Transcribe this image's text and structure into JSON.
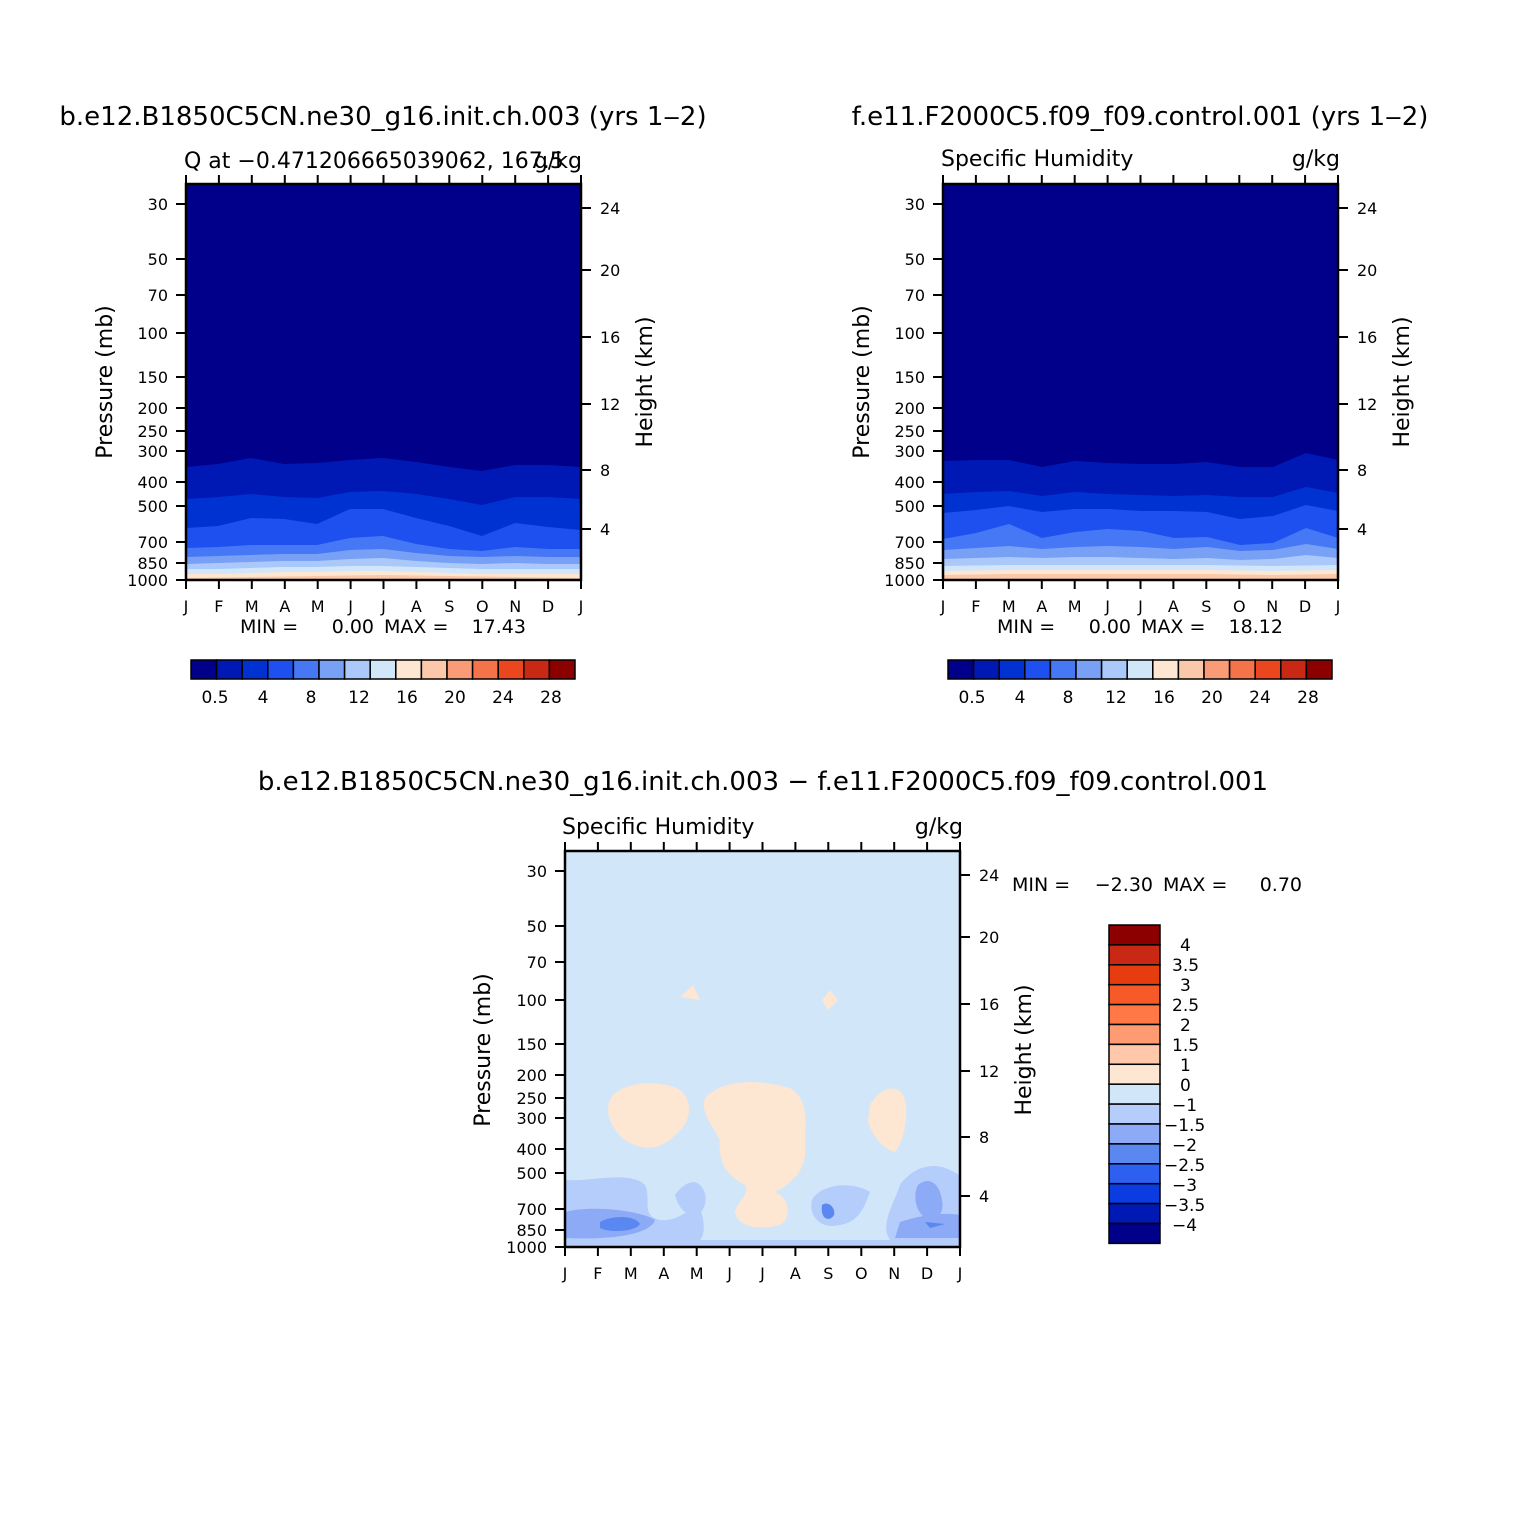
{
  "chart_data": [
    {
      "type": "contour",
      "case_title": "b.e12.B1850C5CN.ne30_g16.init.ch.003 (yrs 1‒2)",
      "left_title": "Q at −0.471206665039062, 167.5",
      "right_title": "g/kg",
      "ylabel": "Pressure (mb)",
      "ylabel_right": "Height (km)",
      "x_ticks": [
        "J",
        "F",
        "M",
        "A",
        "M",
        "J",
        "J",
        "A",
        "S",
        "O",
        "N",
        "D",
        "J"
      ],
      "y_ticks": [
        "30",
        "50",
        "70",
        "100",
        "150",
        "200",
        "250",
        "300",
        "400",
        "500",
        "700",
        "850",
        "1000"
      ],
      "y_ticks_right": [
        "24",
        "20",
        "16",
        "12",
        "8",
        "4"
      ],
      "stats": {
        "min_label": "MIN =",
        "min": "0.00",
        "max_label": "MAX =",
        "max": "17.43"
      },
      "colorbar_labels": [
        "0.5",
        "4",
        "8",
        "12",
        "16",
        "20",
        "24",
        "28"
      ]
    },
    {
      "type": "contour",
      "case_title": "f.e11.F2000C5.f09_f09.control.001 (yrs 1‒2)",
      "left_title": "Specific Humidity",
      "right_title": "g/kg",
      "ylabel": "Pressure (mb)",
      "ylabel_right": "Height (km)",
      "x_ticks": [
        "J",
        "F",
        "M",
        "A",
        "M",
        "J",
        "J",
        "A",
        "S",
        "O",
        "N",
        "D",
        "J"
      ],
      "y_ticks": [
        "30",
        "50",
        "70",
        "100",
        "150",
        "200",
        "250",
        "300",
        "400",
        "500",
        "700",
        "850",
        "1000"
      ],
      "y_ticks_right": [
        "24",
        "20",
        "16",
        "12",
        "8",
        "4"
      ],
      "stats": {
        "min_label": "MIN =",
        "min": "0.00",
        "max_label": "MAX =",
        "max": "18.12"
      },
      "colorbar_labels": [
        "0.5",
        "4",
        "8",
        "12",
        "16",
        "20",
        "24",
        "28"
      ]
    },
    {
      "type": "contour",
      "case_title": "b.e12.B1850C5CN.ne30_g16.init.ch.003 − f.e11.F2000C5.f09_f09.control.001",
      "left_title": "Specific Humidity",
      "right_title": "g/kg",
      "ylabel": "Pressure (mb)",
      "ylabel_right": "Height (km)",
      "x_ticks": [
        "J",
        "F",
        "M",
        "A",
        "M",
        "J",
        "J",
        "A",
        "S",
        "O",
        "N",
        "D",
        "J"
      ],
      "y_ticks": [
        "30",
        "50",
        "70",
        "100",
        "150",
        "200",
        "250",
        "300",
        "400",
        "500",
        "700",
        "850",
        "1000"
      ],
      "y_ticks_right": [
        "24",
        "20",
        "16",
        "12",
        "8",
        "4"
      ],
      "stats": {
        "min_label": "MIN =",
        "min": "−2.30",
        "max_label": "MAX =",
        "max": "0.70"
      },
      "colorbar_labels": [
        "4",
        "3.5",
        "3",
        "2.5",
        "2",
        "1.5",
        "1",
        "0",
        "−1",
        "−1.5",
        "−2",
        "−2.5",
        "−3",
        "−3.5",
        "−4"
      ]
    }
  ],
  "colors": {
    "abs_scale": [
      "#00008b",
      "#0019b4",
      "#0032d2",
      "#1e50f0",
      "#4678f5",
      "#78a0f5",
      "#aac8fa",
      "#d2e6fa",
      "#fde6d2",
      "#fcc8aa",
      "#fa9b78",
      "#f5734b",
      "#eb461e",
      "#c82814",
      "#8c0000"
    ],
    "diff_scale": [
      "#8c0000",
      "#c82814",
      "#e63c0f",
      "#f55a28",
      "#ff7846",
      "#ff9b73",
      "#ffc8aa",
      "#fde6d2",
      "#d2e6fa",
      "#b4cdfa",
      "#8caaf5",
      "#5a87f0",
      "#2d5ff0",
      "#0a3ce1",
      "#0019b4",
      "#00008b"
    ]
  }
}
